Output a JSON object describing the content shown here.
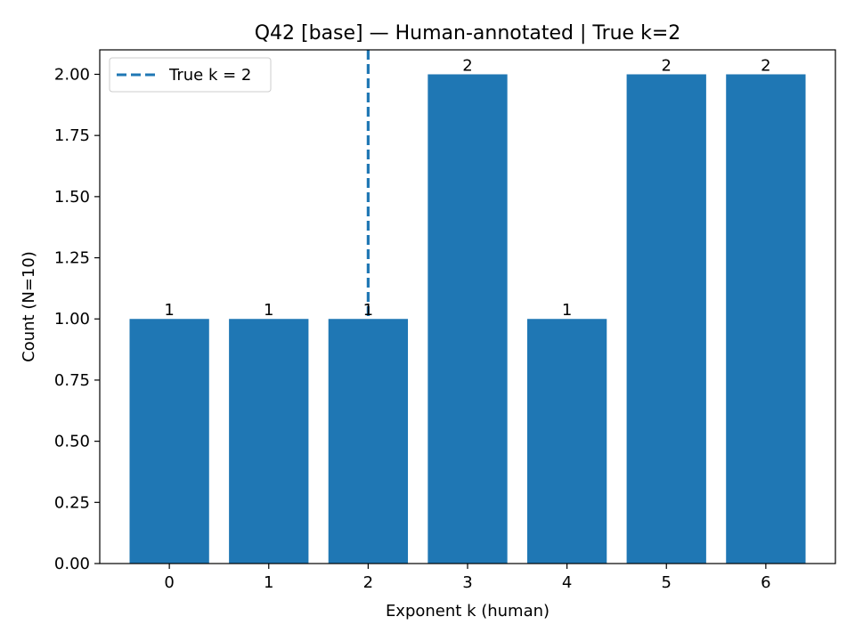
{
  "chart_data": {
    "type": "bar",
    "title": "Q42 [base] — Human-annotated | True k=2",
    "xlabel": "Exponent k (human)",
    "ylabel": "Count (N=10)",
    "categories": [
      "0",
      "1",
      "2",
      "3",
      "4",
      "5",
      "6"
    ],
    "x": [
      0,
      1,
      2,
      3,
      4,
      5,
      6
    ],
    "values": [
      1,
      1,
      1,
      2,
      1,
      2,
      2
    ],
    "data_labels": [
      "1",
      "1",
      "1",
      "2",
      "1",
      "2",
      "2"
    ],
    "xlim": [
      -0.7,
      6.7
    ],
    "ylim": [
      0,
      2.1
    ],
    "yticks": [
      0,
      0.25,
      0.5,
      0.75,
      1.0,
      1.25,
      1.5,
      1.75,
      2.0
    ],
    "ytick_labels": [
      "0.00",
      "0.25",
      "0.50",
      "0.75",
      "1.00",
      "1.25",
      "1.50",
      "1.75",
      "2.00"
    ],
    "reference_line": {
      "x": 2,
      "style": "dashed",
      "label": "True k = 2"
    },
    "legend": {
      "position": "top-left",
      "entries": [
        "True k = 2"
      ]
    },
    "grid": false,
    "colors": {
      "bar": "#1f77b4",
      "reference_line": "#1f77b4"
    }
  }
}
